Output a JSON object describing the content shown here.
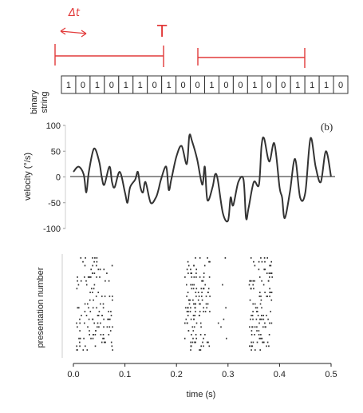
{
  "annotations": {
    "delta_t": "Δt",
    "T": "T",
    "color": "#e23a3a"
  },
  "panel_label": "(b)",
  "binary_label_line1": "binary",
  "binary_label_line2": "string",
  "binary_string": [
    "1",
    "0",
    "1",
    "0",
    "1",
    "1",
    "0",
    "1",
    "0",
    "0",
    "1",
    "0",
    "0",
    "1",
    "0",
    "0",
    "1",
    "1",
    "1",
    "0"
  ],
  "chart_data": [
    {
      "type": "line",
      "name": "velocity",
      "ylabel": "velocity (°/s)",
      "ylim": [
        -100,
        100
      ],
      "yticks": [
        100,
        50,
        0,
        -50,
        -100
      ],
      "xlim": [
        0,
        0.5
      ],
      "x": [
        0.0,
        0.01,
        0.02,
        0.025,
        0.03,
        0.04,
        0.05,
        0.055,
        0.06,
        0.07,
        0.075,
        0.08,
        0.09,
        0.1,
        0.105,
        0.11,
        0.12,
        0.125,
        0.13,
        0.135,
        0.14,
        0.15,
        0.16,
        0.165,
        0.17,
        0.18,
        0.185,
        0.19,
        0.2,
        0.21,
        0.22,
        0.225,
        0.23,
        0.24,
        0.25,
        0.255,
        0.26,
        0.27,
        0.275,
        0.28,
        0.29,
        0.3,
        0.305,
        0.31,
        0.32,
        0.33,
        0.335,
        0.34,
        0.35,
        0.36,
        0.365,
        0.37,
        0.38,
        0.39,
        0.4,
        0.405,
        0.41,
        0.42,
        0.43,
        0.44,
        0.45,
        0.46,
        0.47,
        0.48,
        0.49,
        0.5
      ],
      "values": [
        10,
        20,
        5,
        -30,
        10,
        55,
        30,
        0,
        -15,
        20,
        -10,
        -20,
        10,
        -30,
        -50,
        -20,
        -5,
        10,
        -20,
        -30,
        -10,
        -50,
        -40,
        -25,
        -5,
        20,
        -25,
        -5,
        40,
        60,
        25,
        80,
        70,
        35,
        -15,
        20,
        -45,
        -20,
        5,
        -5,
        -70,
        -85,
        -40,
        -55,
        -10,
        -5,
        -80,
        -60,
        -10,
        -15,
        60,
        75,
        30,
        65,
        -20,
        -40,
        -80,
        -30,
        35,
        -40,
        -30,
        75,
        20,
        -10,
        50,
        0
      ]
    },
    {
      "type": "scatter",
      "name": "raster",
      "xlabel": "time (s)",
      "ylabel": "presentation number",
      "xlim": [
        0,
        0.5
      ],
      "xticks": [
        "0.0",
        "0.1",
        "0.2",
        "0.3",
        "0.4",
        "0.5"
      ],
      "rows": 25,
      "bursts": [
        {
          "start": 0.005,
          "end": 0.075
        },
        {
          "start": 0.215,
          "end": 0.265
        },
        {
          "start": 0.34,
          "end": 0.385
        }
      ]
    }
  ]
}
